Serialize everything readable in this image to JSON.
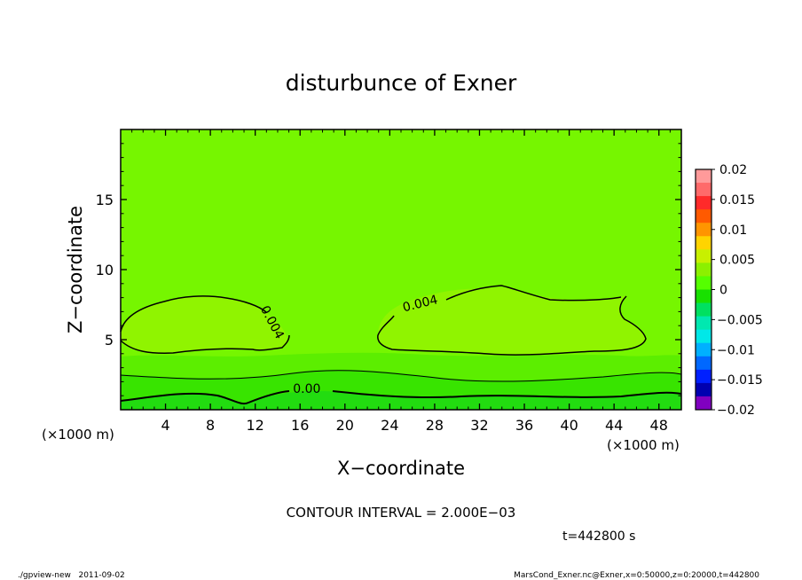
{
  "chart_data": {
    "type": "contour",
    "title": "disturbunce of Exner",
    "xlabel": "X−coordinate",
    "ylabel": "Z−coordinate",
    "x_unit_left": "(×1000 m)",
    "x_unit_right": "(×1000 m)",
    "xlim": [
      0,
      50
    ],
    "ylim": [
      0,
      20
    ],
    "x_ticks": [
      4,
      8,
      12,
      16,
      20,
      24,
      28,
      32,
      36,
      40,
      44,
      48
    ],
    "y_ticks": [
      5,
      10,
      15
    ],
    "contour_interval_text": "CONTOUR INTERVAL = 2.000E−03",
    "time_text": "t=442800 s",
    "contour_labels": [
      {
        "text": "0.004",
        "x": 13.2,
        "z": 6.1
      },
      {
        "text": "0.004",
        "x": 26.8,
        "z": 7.3
      },
      {
        "text": "0.00",
        "x": 16.6,
        "z": 1.2
      }
    ],
    "colorbar": {
      "labels": [
        "0.02",
        "0.015",
        "0.01",
        "0.005",
        "0",
        "−0.005",
        "−0.01",
        "−0.015",
        "−0.02"
      ],
      "colors": [
        "#ff9a9a",
        "#ff6a6a",
        "#ff2a2a",
        "#ff5a00",
        "#ff9500",
        "#ffd400",
        "#c8f000",
        "#8cf000",
        "#55ff00",
        "#18e000",
        "#00e060",
        "#00e8b0",
        "#00e8e8",
        "#00b0ff",
        "#0068ff",
        "#0020ff",
        "#0000b0",
        "#8000c0"
      ]
    },
    "fill_colors": {
      "background": "#76f600",
      "cell_004": "#90f400",
      "band_low": "#5cee00",
      "band_lower": "#38e400",
      "band_lowest": "#22dc10"
    }
  },
  "footer": {
    "left": "./gpview-new   2011-09-02",
    "right": "MarsCond_Exner.nc@Exner,x=0:50000,z=0:20000,t=442800"
  }
}
